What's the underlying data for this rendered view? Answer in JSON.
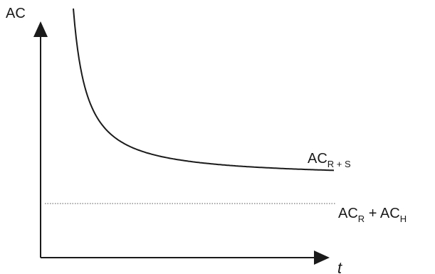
{
  "chart_data": {
    "type": "line",
    "ylabel": "AC",
    "xlabel": "t",
    "grid": false,
    "series": [
      {
        "name_parts": {
          "main": "AC",
          "sub": "R + S"
        },
        "style": "solid",
        "color": "#1a1a1a",
        "shape": "decreasing hyperbola approaching horizontal asymptote"
      },
      {
        "name_parts": {
          "main1": "AC",
          "sub1": "R",
          "plus": " + ",
          "main2": "AC",
          "sub2": "H"
        },
        "style": "dotted",
        "color": "#555555",
        "shape": "horizontal line"
      }
    ]
  }
}
